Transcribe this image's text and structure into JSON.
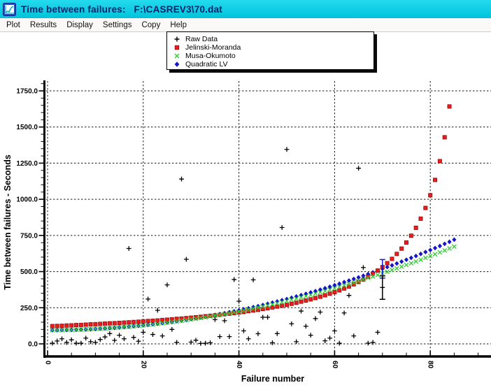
{
  "window": {
    "title": "Time between failures:   F:\\CASREV3\\70.dat",
    "titlebar_color": "#00c9de",
    "title_text_color": "#04216b"
  },
  "menu": {
    "items": [
      "Plot",
      "Results",
      "Display",
      "Settings",
      "Copy",
      "Help"
    ]
  },
  "legend": {
    "items": [
      {
        "label": "Raw Data",
        "marker": "plus",
        "color": "#000000"
      },
      {
        "label": "Jelinski-Moranda",
        "marker": "square",
        "color": "#ee1c1c"
      },
      {
        "label": "Musa-Okumoto",
        "marker": "cross",
        "color": "#2ecc2e"
      },
      {
        "label": "Quadratic LV",
        "marker": "diamond",
        "color": "#1616c8"
      }
    ]
  },
  "chart_data": {
    "type": "scatter",
    "xlabel": "Failure number",
    "ylabel": "Time between failures - Seconds",
    "xlim": [
      0,
      92.7
    ],
    "ylim": [
      0,
      1830
    ],
    "x_ticks": [
      0,
      20,
      40,
      60,
      80
    ],
    "x_minor_step": 5,
    "y_ticks": [
      0,
      250,
      500,
      750,
      1000,
      1250,
      1500,
      1750
    ],
    "y_minor_step": 50,
    "grid": "dashed",
    "raw_points": [
      [
        1,
        5
      ],
      [
        2,
        20
      ],
      [
        3,
        35
      ],
      [
        4,
        10
      ],
      [
        5,
        28
      ],
      [
        6,
        5
      ],
      [
        7,
        5
      ],
      [
        8,
        40
      ],
      [
        9,
        15
      ],
      [
        10,
        10
      ],
      [
        11,
        30
      ],
      [
        12,
        48
      ],
      [
        13,
        71
      ],
      [
        14,
        24
      ],
      [
        15,
        60
      ],
      [
        16,
        35
      ],
      [
        17,
        660
      ],
      [
        18,
        45
      ],
      [
        19,
        18
      ],
      [
        20,
        80
      ],
      [
        21,
        310
      ],
      [
        22,
        65
      ],
      [
        23,
        232
      ],
      [
        24,
        55
      ],
      [
        25,
        408
      ],
      [
        26,
        100
      ],
      [
        27,
        10
      ],
      [
        28,
        1140
      ],
      [
        29,
        585
      ],
      [
        30,
        12
      ],
      [
        31,
        25
      ],
      [
        32,
        3
      ],
      [
        33,
        5
      ],
      [
        34,
        8
      ],
      [
        35,
        168
      ],
      [
        36,
        50
      ],
      [
        37,
        160
      ],
      [
        38,
        50
      ],
      [
        39,
        445
      ],
      [
        40,
        295
      ],
      [
        41,
        90
      ],
      [
        42,
        35
      ],
      [
        43,
        443
      ],
      [
        44,
        70
      ],
      [
        45,
        184
      ],
      [
        46,
        184
      ],
      [
        47,
        8
      ],
      [
        48,
        71
      ],
      [
        49,
        805
      ],
      [
        50,
        1345
      ],
      [
        51,
        139
      ],
      [
        52,
        15
      ],
      [
        53,
        227
      ],
      [
        54,
        122
      ],
      [
        55,
        60
      ],
      [
        56,
        175
      ],
      [
        57,
        220
      ],
      [
        58,
        21
      ],
      [
        59,
        40
      ],
      [
        60,
        90
      ],
      [
        61,
        5
      ],
      [
        62,
        214
      ],
      [
        63,
        335
      ],
      [
        64,
        55
      ],
      [
        65,
        1215
      ],
      [
        66,
        528
      ],
      [
        67,
        5
      ],
      [
        68,
        10
      ],
      [
        69,
        80
      ],
      [
        70,
        390
      ]
    ],
    "series": [
      {
        "name": "Jelinski-Moranda",
        "marker": "square",
        "color": "#ee1c1c",
        "edge": "#8c0e0e",
        "start_x": 1,
        "values": [
          123,
          124,
          125,
          127,
          128,
          130,
          131,
          133,
          135,
          136,
          138,
          140,
          142,
          143,
          145,
          147,
          149,
          151,
          153,
          156,
          158,
          160,
          162,
          165,
          167,
          170,
          173,
          175,
          178,
          181,
          184,
          187,
          191,
          194,
          197,
          201,
          205,
          209,
          213,
          217,
          221,
          226,
          231,
          235,
          241,
          246,
          252,
          258,
          264,
          270,
          277,
          284,
          292,
          300,
          308,
          317,
          326,
          336,
          347,
          358,
          370,
          383,
          397,
          412,
          428,
          445,
          464,
          485,
          507,
          531,
          558,
          588,
          622,
          659,
          701,
          748,
          803,
          866,
          940,
          1028,
          1134,
          1264,
          1429,
          1642
        ]
      },
      {
        "name": "Musa-Okumoto",
        "marker": "cross",
        "color": "#2ecc2e",
        "edge": "#2ecc2e",
        "start_x": 1,
        "values": [
          95,
          95,
          96,
          97,
          97,
          98,
          99,
          101,
          102,
          104,
          105,
          107,
          109,
          112,
          114,
          117,
          119,
          122,
          125,
          128,
          132,
          135,
          139,
          143,
          147,
          151,
          155,
          159,
          164,
          169,
          174,
          179,
          184,
          189,
          195,
          201,
          206,
          212,
          219,
          225,
          231,
          238,
          245,
          252,
          259,
          266,
          274,
          281,
          289,
          297,
          305,
          313,
          322,
          330,
          339,
          348,
          357,
          366,
          375,
          385,
          394,
          404,
          414,
          424,
          435,
          445,
          456,
          466,
          477,
          488,
          499,
          511,
          522,
          534,
          546,
          558,
          570,
          582,
          595,
          608,
          620,
          633,
          646,
          660,
          673
        ]
      },
      {
        "name": "Quadratic LV",
        "marker": "diamond",
        "color": "#1616c8",
        "edge": "#0b0b86",
        "start_x": 1,
        "values": [
          95,
          95,
          96,
          96,
          97,
          98,
          99,
          100,
          101,
          103,
          105,
          107,
          109,
          111,
          114,
          116,
          119,
          122,
          125,
          129,
          132,
          136,
          140,
          144,
          148,
          152,
          157,
          162,
          166,
          172,
          177,
          182,
          188,
          194,
          200,
          206,
          212,
          219,
          225,
          232,
          239,
          246,
          254,
          261,
          269,
          277,
          285,
          293,
          302,
          310,
          319,
          328,
          337,
          346,
          356,
          365,
          375,
          385,
          395,
          406,
          416,
          427,
          438,
          449,
          460,
          471,
          483,
          495,
          507,
          519,
          531,
          543,
          556,
          569,
          582,
          595,
          608,
          622,
          635,
          649,
          663,
          677,
          692,
          706,
          721
        ]
      }
    ],
    "error_bars": [
      {
        "x": 70,
        "low": 455,
        "high": 583,
        "color": "#1616c8"
      },
      {
        "x": 70,
        "low": 308,
        "high": 470,
        "color": "#000000"
      }
    ]
  }
}
